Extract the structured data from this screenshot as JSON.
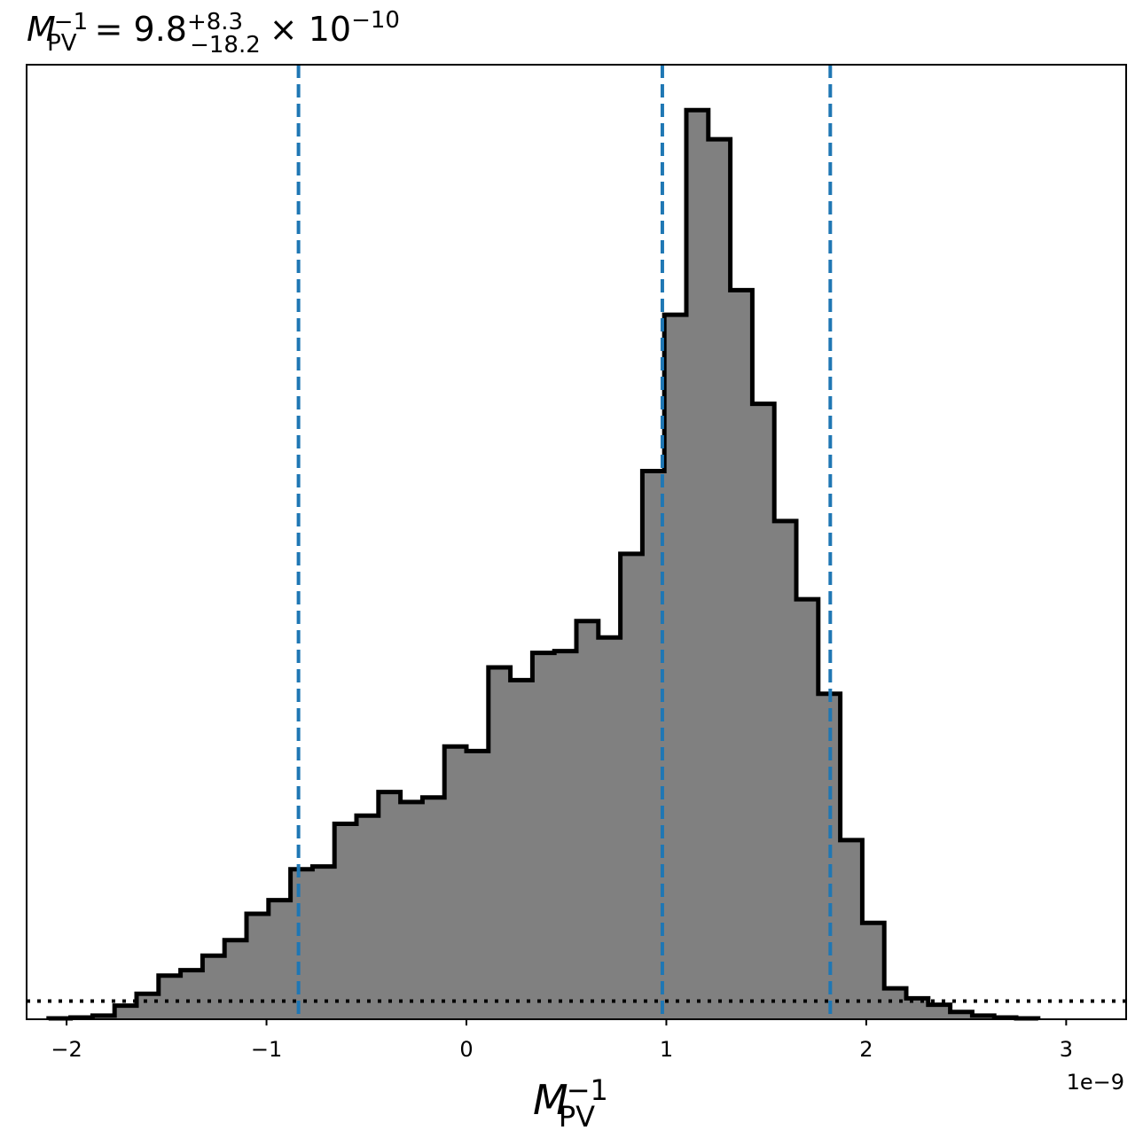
{
  "chart_data": {
    "type": "histogram",
    "title": {
      "base": "M",
      "base_sup": "−1",
      "base_sub": "PV",
      "eq": "= 9.8",
      "plus": "+8.3",
      "minus": "−18.2",
      "times": "× 10",
      "exp": "−10"
    },
    "xlabel": {
      "base": "M",
      "sup": "−1",
      "sub": "PV"
    },
    "offset_text": "1e−9",
    "xlim": [
      -2.2,
      3.3
    ],
    "ylim": [
      0,
      1.05
    ],
    "x_ticks": [
      -2,
      -1,
      0,
      1,
      2,
      3
    ],
    "x_tick_labels": [
      "−2",
      "−1",
      "0",
      "1",
      "2",
      "3"
    ],
    "y_ticks_visible": false,
    "bin_edges": [
      -2.09,
      -1.98,
      -1.87,
      -1.76,
      -1.65,
      -1.54,
      -1.43,
      -1.32,
      -1.21,
      -1.1,
      -0.99,
      -0.88,
      -0.77,
      -0.66,
      -0.55,
      -0.44,
      -0.33,
      -0.22,
      -0.11,
      0.0,
      0.11,
      0.22,
      0.33,
      0.44,
      0.55,
      0.66,
      0.77,
      0.88,
      0.99,
      1.1,
      1.21,
      1.32,
      1.43,
      1.54,
      1.65,
      1.76,
      1.87,
      1.98,
      2.09,
      2.2,
      2.31,
      2.42,
      2.53,
      2.64,
      2.75,
      2.86
    ],
    "counts": [
      0.001,
      0.002,
      0.004,
      0.015,
      0.028,
      0.048,
      0.054,
      0.07,
      0.087,
      0.116,
      0.131,
      0.165,
      0.168,
      0.215,
      0.224,
      0.25,
      0.239,
      0.244,
      0.3,
      0.295,
      0.387,
      0.373,
      0.403,
      0.405,
      0.438,
      0.42,
      0.512,
      0.603,
      0.775,
      1.0,
      0.968,
      0.802,
      0.677,
      0.548,
      0.462,
      0.358,
      0.197,
      0.106,
      0.034,
      0.023,
      0.016,
      0.008,
      0.004,
      0.002,
      0.001
    ],
    "fill_color": "#808080",
    "edge_color": "#000000",
    "vlines": [
      -0.84,
      0.98,
      1.82
    ],
    "vline_color": "#1f77b4",
    "hline": 0.02
  }
}
